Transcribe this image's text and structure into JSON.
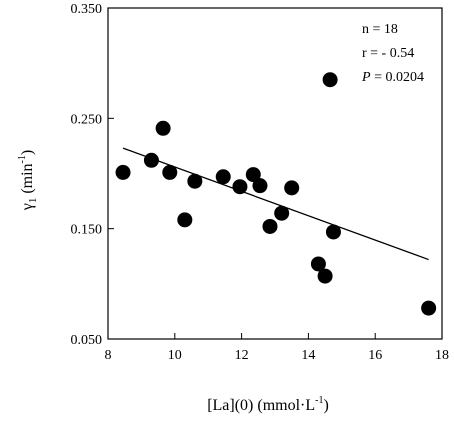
{
  "chart_data": {
    "type": "scatter",
    "title": "",
    "xlabel": "[La](0) (mmol·L",
    "xlabel_sup": "-1",
    "xlabel_close": ")",
    "ylabel_symbol": "γ",
    "ylabel_sub": "1",
    "ylabel_unit": " (min",
    "ylabel_sup": "-1",
    "ylabel_close": ")",
    "xlim": [
      8,
      18
    ],
    "ylim": [
      0.05,
      0.35
    ],
    "x_ticks": [
      8,
      10,
      12,
      14,
      16,
      18
    ],
    "x_tick_labels": [
      "8",
      "10",
      "12",
      "14",
      "16",
      "18"
    ],
    "y_ticks": [
      0.05,
      0.15,
      0.25,
      0.35
    ],
    "y_tick_labels": [
      "0.050",
      "0.150",
      "0.250",
      "0.350"
    ],
    "grid": false,
    "points": [
      {
        "x": 8.45,
        "y": 0.201
      },
      {
        "x": 9.3,
        "y": 0.212
      },
      {
        "x": 9.65,
        "y": 0.241
      },
      {
        "x": 9.85,
        "y": 0.201
      },
      {
        "x": 10.3,
        "y": 0.158
      },
      {
        "x": 10.6,
        "y": 0.193
      },
      {
        "x": 11.45,
        "y": 0.197
      },
      {
        "x": 11.95,
        "y": 0.188
      },
      {
        "x": 12.35,
        "y": 0.199
      },
      {
        "x": 12.55,
        "y": 0.189
      },
      {
        "x": 12.85,
        "y": 0.152
      },
      {
        "x": 13.2,
        "y": 0.164
      },
      {
        "x": 13.5,
        "y": 0.187
      },
      {
        "x": 14.3,
        "y": 0.118
      },
      {
        "x": 14.5,
        "y": 0.107
      },
      {
        "x": 14.65,
        "y": 0.285
      },
      {
        "x": 14.75,
        "y": 0.147
      },
      {
        "x": 17.6,
        "y": 0.078
      }
    ],
    "trendline": {
      "x1": 8.45,
      "y1": 0.223,
      "x2": 17.6,
      "y2": 0.122
    },
    "annotations": {
      "n": "n = 18",
      "r": "r = - 0.54",
      "p_symbol": "P",
      "p_value": " = 0.0204"
    },
    "marker_color": "#000000",
    "line_color": "#000000"
  }
}
